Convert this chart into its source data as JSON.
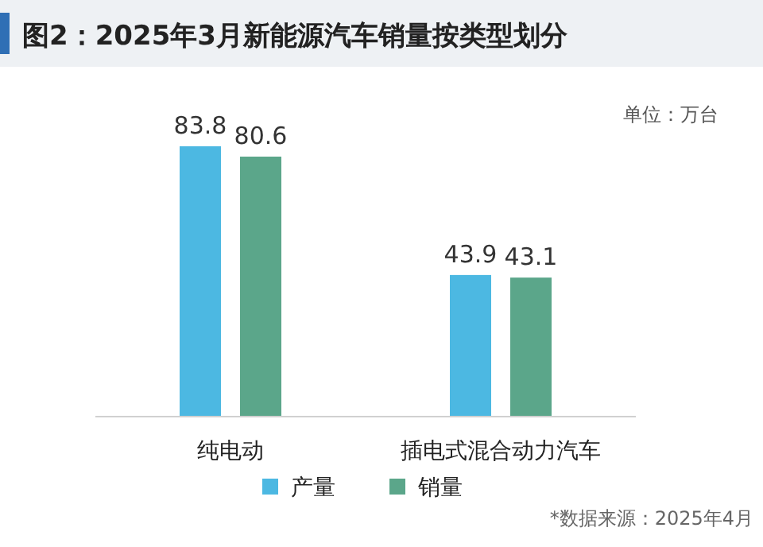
{
  "chart_data": {
    "type": "bar",
    "title": "图2：2025年3月新能源汽车销量按类型划分",
    "categories": [
      "纯电动",
      "插电式混合动力汽车"
    ],
    "series": [
      {
        "name": "产量",
        "color": "#4cb8e2",
        "values": [
          83.8,
          43.9
        ]
      },
      {
        "name": "销量",
        "color": "#5ba68a",
        "values": [
          80.6,
          43.1
        ]
      }
    ],
    "data_labels": true,
    "legend": "bottom",
    "annotations": [
      "单位：万台",
      "*数据来源：2025年4月"
    ]
  }
}
